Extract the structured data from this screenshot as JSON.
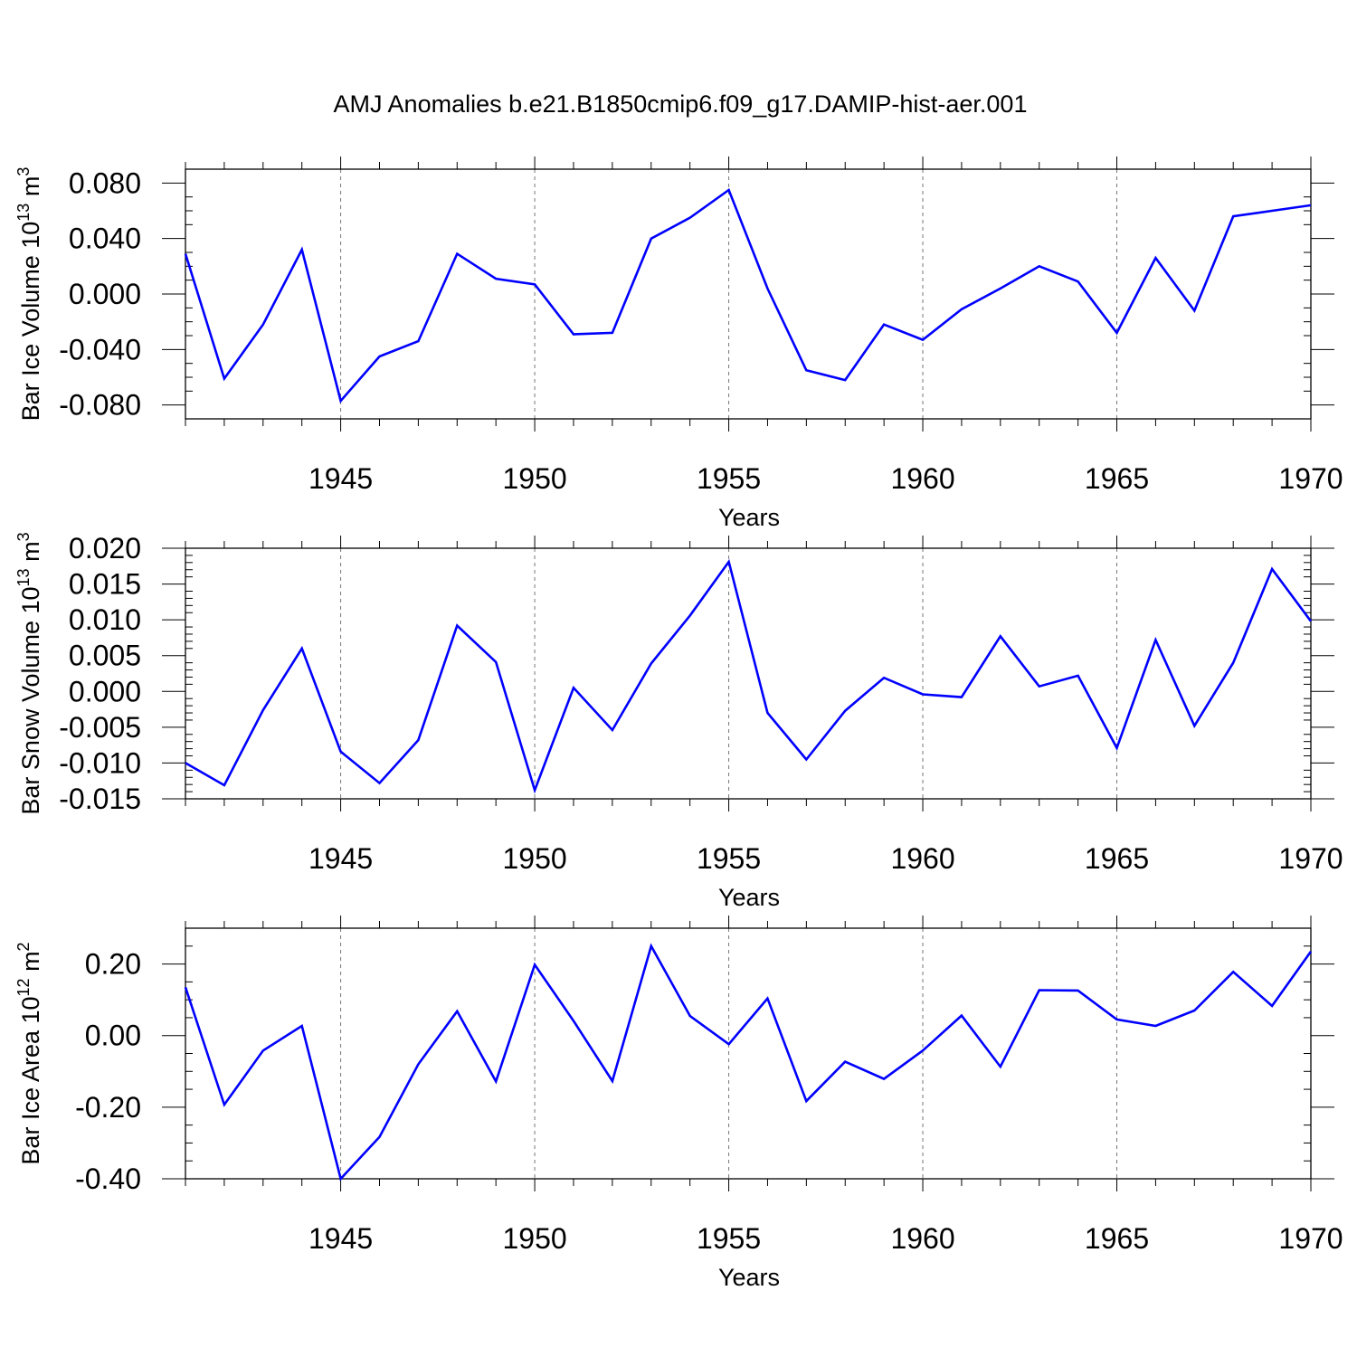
{
  "title": "AMJ Anomalies b.e21.B1850cmip6.f09_g17.DAMIP-hist-aer.001",
  "colors": {
    "line": "#0000ff",
    "axis": "#000000",
    "grid": "#777777"
  },
  "chart_data": [
    {
      "type": "line",
      "title": "AMJ Anomalies b.e21.B1850cmip6.f09_g17.DAMIP-hist-aer.001",
      "xlabel": "Years",
      "ylabel": {
        "text": "Bar Ice Volume 10",
        "exp": "13",
        "unit": " m",
        "unit_exp": "3"
      },
      "xlim": [
        1941,
        1970
      ],
      "ylim": [
        -0.09,
        0.09
      ],
      "x_ticks": [
        1945,
        1950,
        1955,
        1960,
        1965,
        1970
      ],
      "x_tick_labels": [
        "1945",
        "1950",
        "1955",
        "1960",
        "1965",
        "1970"
      ],
      "y_ticks": [
        0.08,
        0.04,
        0.0,
        -0.04,
        -0.08
      ],
      "y_tick_labels": [
        "0.080",
        "0.040",
        "0.000",
        "-0.040",
        "-0.080"
      ],
      "y_minor_step": 0.01,
      "grid": "vertical dashed at major x ticks",
      "x": [
        1941,
        1942,
        1943,
        1944,
        1945,
        1946,
        1947,
        1948,
        1949,
        1950,
        1951,
        1952,
        1953,
        1954,
        1955,
        1956,
        1957,
        1958,
        1959,
        1960,
        1961,
        1962,
        1963,
        1964,
        1965,
        1966,
        1967,
        1968,
        1969,
        1970
      ],
      "values": [
        0.029,
        -0.061,
        -0.022,
        0.032,
        -0.077,
        -0.045,
        -0.034,
        0.029,
        0.011,
        0.007,
        -0.029,
        -0.028,
        0.04,
        0.055,
        0.075,
        0.004,
        -0.055,
        -0.062,
        -0.022,
        -0.033,
        -0.011,
        0.004,
        0.02,
        0.009,
        -0.028,
        0.026,
        -0.012,
        0.056,
        0.06,
        0.064
      ]
    },
    {
      "type": "line",
      "xlabel": "Years",
      "ylabel": {
        "text": "Bar Snow Volume 10",
        "exp": "13",
        "unit": " m",
        "unit_exp": "3"
      },
      "xlim": [
        1941,
        1970
      ],
      "ylim": [
        -0.015,
        0.02
      ],
      "x_ticks": [
        1945,
        1950,
        1955,
        1960,
        1965,
        1970
      ],
      "x_tick_labels": [
        "1945",
        "1950",
        "1955",
        "1960",
        "1965",
        "1970"
      ],
      "y_ticks": [
        0.02,
        0.015,
        0.01,
        0.005,
        0.0,
        -0.005,
        -0.01,
        -0.015
      ],
      "y_tick_labels": [
        "0.020",
        "0.015",
        "0.010",
        "0.005",
        "0.000",
        "-0.005",
        "-0.010",
        "-0.015"
      ],
      "y_minor_step": 0.001,
      "grid": "vertical dashed at major x ticks",
      "x": [
        1941,
        1942,
        1943,
        1944,
        1945,
        1946,
        1947,
        1948,
        1949,
        1950,
        1951,
        1952,
        1953,
        1954,
        1955,
        1956,
        1957,
        1958,
        1959,
        1960,
        1961,
        1962,
        1963,
        1964,
        1965,
        1966,
        1967,
        1968,
        1969,
        1970
      ],
      "values": [
        -0.01,
        -0.0131,
        -0.0026,
        0.006,
        -0.0084,
        -0.0128,
        -0.0068,
        0.0092,
        0.0041,
        -0.0138,
        0.0005,
        -0.0054,
        0.0039,
        0.0106,
        0.0181,
        -0.003,
        -0.0095,
        -0.0027,
        0.0019,
        -0.0004,
        -0.0008,
        0.0077,
        0.0007,
        0.0022,
        -0.0079,
        0.0072,
        -0.0048,
        0.004,
        0.0171,
        0.0098
      ]
    },
    {
      "type": "line",
      "xlabel": "Years",
      "ylabel": {
        "text": "Bar Ice Area 10",
        "exp": "12",
        "unit": " m",
        "unit_exp": "2"
      },
      "xlim": [
        1941,
        1970
      ],
      "ylim": [
        -0.4,
        0.3
      ],
      "x_ticks": [
        1945,
        1950,
        1955,
        1960,
        1965,
        1970
      ],
      "x_tick_labels": [
        "1945",
        "1950",
        "1955",
        "1960",
        "1965",
        "1970"
      ],
      "y_ticks": [
        0.2,
        0.0,
        -0.2,
        -0.4
      ],
      "y_tick_labels": [
        "0.20",
        "0.00",
        "-0.20",
        "-0.40"
      ],
      "y_minor_step": 0.05,
      "grid": "vertical dashed at major x ticks",
      "x": [
        1941,
        1942,
        1943,
        1944,
        1945,
        1946,
        1947,
        1948,
        1949,
        1950,
        1951,
        1952,
        1953,
        1954,
        1955,
        1956,
        1957,
        1958,
        1959,
        1960,
        1961,
        1962,
        1963,
        1964,
        1965,
        1966,
        1967,
        1968,
        1969,
        1970
      ],
      "values": [
        0.135,
        -0.193,
        -0.042,
        0.027,
        -0.4,
        -0.283,
        -0.08,
        0.068,
        -0.128,
        0.198,
        0.041,
        -0.127,
        0.25,
        0.055,
        -0.024,
        0.104,
        -0.183,
        -0.073,
        -0.121,
        -0.042,
        0.056,
        -0.087,
        0.127,
        0.126,
        0.045,
        0.027,
        0.07,
        0.178,
        0.083,
        0.235
      ]
    }
  ]
}
